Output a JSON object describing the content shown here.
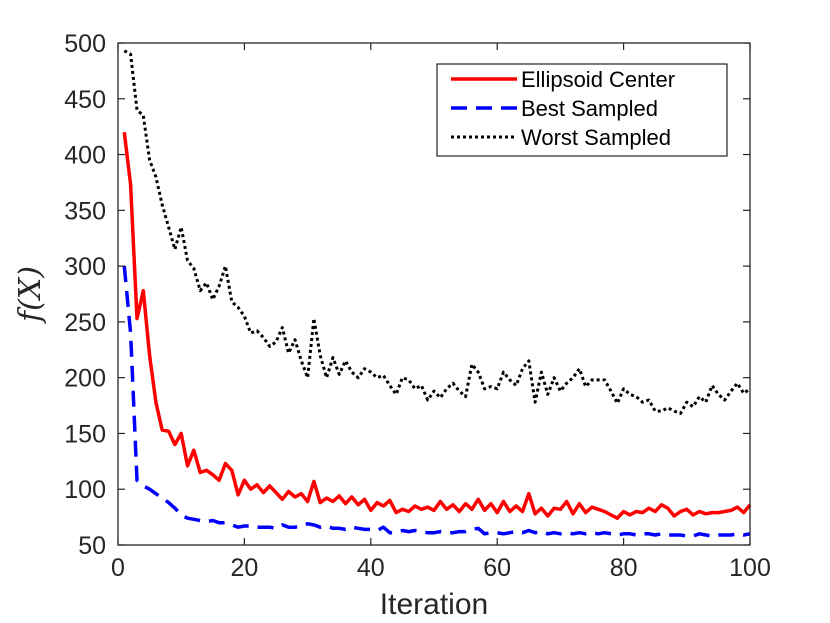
{
  "chart_data": {
    "type": "line",
    "title": "",
    "xlabel": "Iteration",
    "ylabel": "f(X)",
    "xlim": [
      0,
      100
    ],
    "ylim": [
      50,
      500
    ],
    "xticks": [
      0,
      20,
      40,
      60,
      80,
      100
    ],
    "yticks": [
      50,
      100,
      150,
      200,
      250,
      300,
      350,
      400,
      450,
      500
    ],
    "grid": false,
    "legend_position": "top-right",
    "series": [
      {
        "name": "Ellipsoid Center",
        "color": "#ff0000",
        "style": "solid",
        "x": [
          1,
          2,
          3,
          4,
          5,
          6,
          7,
          8,
          9,
          10,
          11,
          12,
          13,
          14,
          15,
          16,
          17,
          18,
          19,
          20,
          21,
          22,
          23,
          24,
          25,
          26,
          27,
          28,
          29,
          30,
          31,
          32,
          33,
          34,
          35,
          36,
          37,
          38,
          39,
          40,
          41,
          42,
          43,
          44,
          45,
          46,
          47,
          48,
          49,
          50,
          51,
          52,
          53,
          54,
          55,
          56,
          57,
          58,
          59,
          60,
          61,
          62,
          63,
          64,
          65,
          66,
          67,
          68,
          69,
          70,
          71,
          72,
          73,
          74,
          75,
          76,
          77,
          78,
          79,
          80,
          81,
          82,
          83,
          84,
          85,
          86,
          87,
          88,
          89,
          90,
          91,
          92,
          93,
          94,
          95,
          96,
          97,
          98,
          99,
          100
        ],
        "values": [
          420,
          373,
          253,
          278,
          220,
          178,
          153,
          152,
          140,
          150,
          121,
          135,
          115,
          117,
          113,
          108,
          123,
          117,
          95,
          108,
          100,
          104,
          97,
          103,
          97,
          91,
          98,
          93,
          96,
          89,
          107,
          88,
          92,
          89,
          94,
          87,
          93,
          86,
          91,
          81,
          88,
          85,
          90,
          79,
          82,
          80,
          85,
          82,
          84,
          81,
          89,
          82,
          86,
          80,
          87,
          82,
          91,
          81,
          87,
          79,
          89,
          80,
          85,
          80,
          96,
          78,
          83,
          76,
          83,
          82,
          89,
          78,
          87,
          79,
          84,
          82,
          80,
          77,
          74,
          80,
          77,
          80,
          79,
          83,
          80,
          86,
          83,
          76,
          80,
          82,
          77,
          80,
          78,
          79,
          79,
          80,
          81,
          84,
          79,
          86
        ]
      },
      {
        "name": "Best Sampled",
        "color": "#0000ff",
        "style": "dashed",
        "x": [
          1,
          2,
          3,
          4,
          5,
          6,
          7,
          8,
          9,
          10,
          11,
          12,
          13,
          14,
          15,
          16,
          17,
          18,
          19,
          20,
          21,
          22,
          23,
          24,
          25,
          26,
          27,
          28,
          29,
          30,
          31,
          32,
          33,
          34,
          35,
          36,
          37,
          38,
          39,
          40,
          41,
          42,
          43,
          44,
          45,
          46,
          47,
          48,
          49,
          50,
          51,
          52,
          53,
          54,
          55,
          56,
          57,
          58,
          59,
          60,
          61,
          62,
          63,
          64,
          65,
          66,
          67,
          68,
          69,
          70,
          71,
          72,
          73,
          74,
          75,
          76,
          77,
          78,
          79,
          80,
          81,
          82,
          83,
          84,
          85,
          86,
          87,
          88,
          89,
          90,
          91,
          92,
          93,
          94,
          95,
          96,
          97,
          98,
          99,
          100
        ],
        "values": [
          300,
          240,
          108,
          103,
          100,
          96,
          92,
          88,
          83,
          77,
          74,
          73,
          72,
          71,
          72,
          70,
          70,
          68,
          66,
          67,
          67,
          66,
          66,
          66,
          65,
          68,
          66,
          66,
          67,
          69,
          68,
          66,
          67,
          65,
          65,
          64,
          66,
          65,
          64,
          64,
          63,
          66,
          61,
          61,
          63,
          62,
          63,
          62,
          61,
          61,
          62,
          61,
          61,
          62,
          62,
          64,
          65,
          60,
          61,
          61,
          60,
          61,
          62,
          61,
          63,
          61,
          62,
          60,
          61,
          60,
          61,
          60,
          61,
          60,
          61,
          60,
          61,
          60,
          59,
          60,
          60,
          59,
          60,
          60,
          59,
          60,
          59,
          59,
          59,
          58,
          58,
          60,
          59,
          58,
          59,
          59,
          59,
          60,
          59,
          60
        ]
      },
      {
        "name": "Worst Sampled",
        "color": "#000000",
        "style": "dotted",
        "x": [
          1,
          2,
          3,
          4,
          5,
          6,
          7,
          8,
          9,
          10,
          11,
          12,
          13,
          14,
          15,
          16,
          17,
          18,
          19,
          20,
          21,
          22,
          23,
          24,
          25,
          26,
          27,
          28,
          29,
          30,
          31,
          32,
          33,
          34,
          35,
          36,
          37,
          38,
          39,
          40,
          41,
          42,
          43,
          44,
          45,
          46,
          47,
          48,
          49,
          50,
          51,
          52,
          53,
          54,
          55,
          56,
          57,
          58,
          59,
          60,
          61,
          62,
          63,
          64,
          65,
          66,
          67,
          68,
          69,
          70,
          71,
          72,
          73,
          74,
          75,
          76,
          77,
          78,
          79,
          80,
          81,
          82,
          83,
          84,
          85,
          86,
          87,
          88,
          89,
          90,
          91,
          92,
          93,
          94,
          95,
          96,
          97,
          98,
          99,
          100
        ],
        "values": [
          493,
          490,
          440,
          435,
          395,
          380,
          355,
          335,
          315,
          335,
          305,
          298,
          278,
          285,
          270,
          282,
          300,
          268,
          263,
          255,
          240,
          242,
          236,
          228,
          232,
          245,
          222,
          234,
          215,
          200,
          253,
          220,
          200,
          218,
          203,
          215,
          205,
          200,
          208,
          205,
          200,
          202,
          193,
          185,
          200,
          198,
          190,
          193,
          180,
          188,
          182,
          190,
          195,
          188,
          183,
          212,
          205,
          190,
          192,
          190,
          205,
          198,
          193,
          208,
          215,
          178,
          205,
          185,
          200,
          188,
          195,
          200,
          208,
          192,
          198,
          198,
          198,
          188,
          177,
          190,
          185,
          183,
          178,
          180,
          170,
          170,
          173,
          170,
          168,
          178,
          174,
          183,
          178,
          193,
          185,
          180,
          188,
          195,
          186,
          190
        ]
      }
    ]
  }
}
